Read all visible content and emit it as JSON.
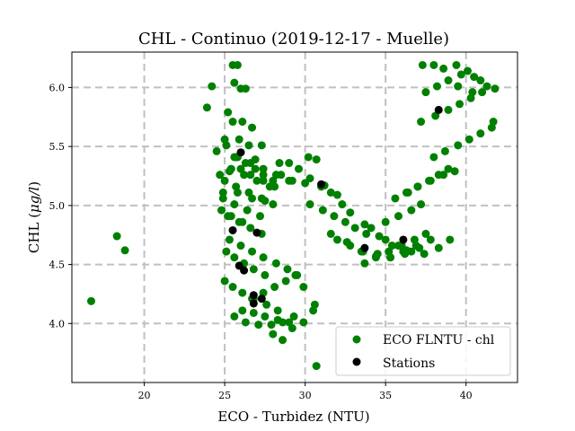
{
  "chart_data": {
    "type": "scatter",
    "title": "CHL - Continuo (2019-12-17 - Muelle)",
    "xlabel": "ECO - Turbidez (NTU)",
    "ylabel_main": "CHL (",
    "ylabel_unit": "μg/l",
    "ylabel_end": ")",
    "xlim": [
      15.5,
      43.2
    ],
    "ylim": [
      3.5,
      6.3
    ],
    "xticks": [
      20,
      25,
      30,
      35,
      40
    ],
    "yticks": [
      4.0,
      4.5,
      5.0,
      5.5,
      6.0
    ],
    "xtick_labels": [
      "20",
      "25",
      "30",
      "35",
      "40"
    ],
    "ytick_labels": [
      "4.0",
      "4.5",
      "5.0",
      "5.5",
      "6.0"
    ],
    "grid": true,
    "legend_position": "bottom-right",
    "colors": {
      "continuous": "#008000",
      "stations": "#000000",
      "grid": "#c0c0c0"
    },
    "series": [
      {
        "name": "ECO FLNTU - chl",
        "marker": "circle",
        "color": "#008000",
        "x": [
          16.7,
          18.3,
          18.8,
          23.9,
          24.2,
          25.5,
          25.8,
          25.6,
          26.0,
          26.3,
          25.2,
          25.5,
          26.1,
          26.7,
          25.0,
          25.9,
          26.5,
          27.3,
          25.6,
          26.9,
          24.7,
          25.3,
          26.0,
          26.6,
          27.4,
          28.1,
          24.9,
          25.8,
          26.7,
          27.5,
          28.4,
          29.0,
          29.6,
          30.2,
          30.7,
          28.5,
          29.2,
          30.0,
          31.0,
          31.6,
          32.3,
          30.3,
          31.1,
          31.8,
          32.5,
          33.1,
          33.8,
          32.0,
          32.8,
          33.6,
          34.4,
          35.2,
          36.0,
          36.8,
          37.5,
          33.7,
          34.5,
          35.3,
          36.1,
          36.9,
          34.1,
          35.0,
          35.8,
          36.6,
          37.2,
          36.4,
          37.0,
          37.7,
          38.3,
          38.9,
          35.6,
          36.3,
          37.0,
          37.8,
          38.6,
          39.3,
          38.0,
          38.7,
          39.5,
          40.2,
          40.9,
          41.6,
          37.2,
          38.1,
          38.9,
          39.6,
          40.3,
          41.0,
          37.5,
          38.2,
          38.9,
          39.7,
          40.5,
          41.3,
          41.8,
          37.3,
          38.0,
          38.6,
          39.4,
          40.1,
          39.5,
          40.4,
          40.9,
          41.7,
          25.1,
          25.6,
          26.2,
          26.8,
          27.5,
          25.0,
          25.5,
          26.1,
          26.8,
          27.6,
          28.3,
          25.3,
          26.0,
          26.7,
          27.4,
          28.2,
          28.9,
          29.5,
          25.6,
          26.3,
          27.1,
          27.9,
          28.6,
          29.3,
          26.1,
          26.8,
          27.5,
          28.3,
          29.0,
          26.7,
          27.4,
          28.1,
          28.8,
          29.4,
          28.0,
          28.6,
          29.2,
          29.9,
          30.5,
          29.9,
          30.6,
          30.7,
          25.2,
          25.9,
          26.6,
          27.3,
          24.8,
          25.4,
          26.1,
          24.9,
          25.6,
          26.4,
          27.2,
          25.0,
          25.7,
          26.5,
          27.3,
          28.0,
          25.4,
          26.2,
          27.0,
          27.8,
          25.8,
          26.6,
          27.4,
          28.2,
          29.0,
          30.3,
          31.2,
          32.0,
          32.8,
          33.7,
          34.6,
          35.4,
          36.3,
          37.1,
          37.8,
          31.6,
          32.6,
          33.5,
          34.4,
          35.3,
          36.2,
          35.0,
          35.8,
          36.6,
          37.4,
          38.3,
          39.0,
          24.5,
          25.1,
          25.7,
          26.3,
          26.9,
          27.4,
          28.0
        ],
        "y": [
          4.19,
          4.74,
          4.62,
          5.83,
          6.01,
          6.19,
          6.19,
          6.04,
          5.99,
          5.99,
          5.79,
          5.71,
          5.71,
          5.66,
          5.56,
          5.56,
          5.51,
          5.51,
          5.41,
          5.39,
          5.26,
          5.29,
          5.31,
          5.26,
          5.21,
          5.16,
          5.11,
          5.11,
          5.06,
          5.04,
          5.36,
          5.36,
          5.31,
          5.41,
          5.39,
          5.26,
          5.21,
          5.19,
          5.16,
          5.11,
          5.01,
          5.01,
          4.96,
          4.91,
          4.86,
          4.81,
          4.76,
          4.71,
          4.66,
          4.61,
          4.56,
          4.61,
          4.66,
          4.71,
          4.76,
          4.51,
          4.59,
          4.56,
          4.61,
          4.66,
          4.81,
          4.86,
          4.91,
          4.96,
          5.01,
          5.11,
          5.16,
          5.21,
          5.26,
          5.31,
          5.06,
          5.11,
          5.16,
          5.21,
          5.26,
          5.29,
          5.41,
          5.46,
          5.51,
          5.56,
          5.61,
          5.66,
          5.71,
          5.76,
          5.81,
          5.86,
          5.91,
          5.96,
          5.96,
          6.01,
          6.06,
          6.11,
          6.09,
          6.01,
          5.99,
          6.19,
          6.19,
          6.16,
          6.19,
          6.14,
          6.01,
          5.96,
          6.06,
          5.71,
          4.61,
          4.56,
          4.51,
          4.46,
          4.41,
          4.36,
          4.31,
          4.26,
          4.21,
          4.16,
          4.11,
          4.71,
          4.66,
          4.61,
          4.56,
          4.51,
          4.46,
          4.41,
          4.06,
          4.01,
          3.99,
          3.99,
          4.01,
          4.06,
          4.11,
          4.09,
          4.06,
          4.03,
          4.01,
          4.21,
          4.26,
          4.31,
          4.36,
          4.41,
          3.91,
          3.86,
          3.96,
          4.01,
          4.11,
          4.31,
          4.16,
          3.64,
          4.91,
          4.86,
          4.81,
          4.76,
          4.96,
          4.91,
          4.86,
          5.06,
          5.01,
          4.96,
          4.91,
          5.21,
          5.16,
          5.11,
          5.06,
          5.01,
          5.31,
          5.26,
          5.21,
          5.16,
          5.41,
          5.36,
          5.31,
          5.26,
          5.21,
          5.23,
          5.17,
          5.09,
          4.94,
          4.84,
          4.74,
          4.66,
          4.62,
          4.64,
          4.71,
          4.76,
          4.69,
          4.61,
          4.57,
          4.56,
          4.59,
          4.71,
          4.66,
          4.61,
          4.59,
          4.64,
          4.71,
          5.46,
          5.51,
          5.41,
          5.36,
          5.31,
          5.26,
          5.21
        ]
      },
      {
        "name": "Stations",
        "marker": "circle",
        "color": "#000000",
        "x": [
          26.0,
          25.5,
          27.0,
          25.9,
          26.2,
          26.8,
          26.8,
          27.3,
          31.0,
          33.7,
          36.1,
          38.3
        ],
        "y": [
          5.45,
          4.79,
          4.77,
          4.49,
          4.45,
          4.24,
          4.17,
          4.21,
          5.18,
          4.64,
          4.71,
          5.81
        ]
      }
    ]
  }
}
